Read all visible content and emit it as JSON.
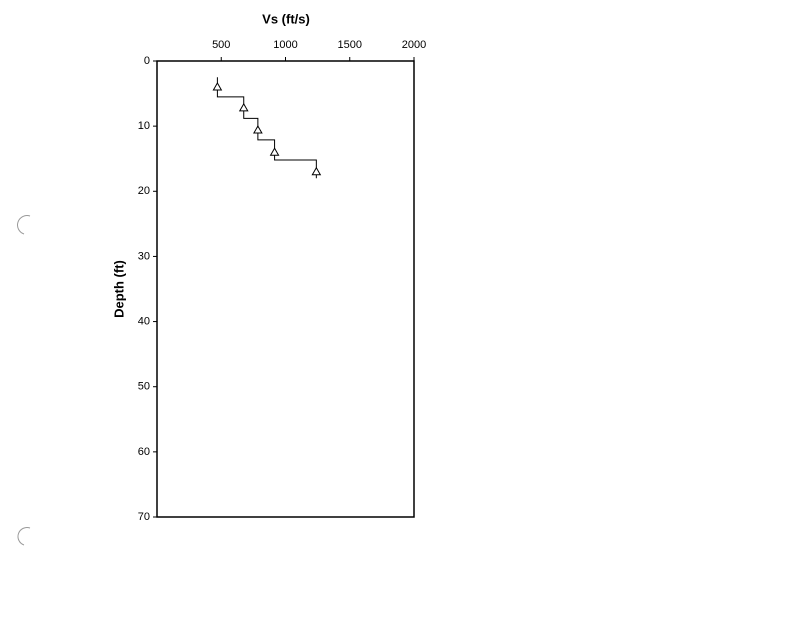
{
  "chart_data": {
    "type": "step-profile",
    "x_label": "Vs (ft/s)",
    "y_label": "Depth (ft)",
    "xlim": [
      0,
      2000
    ],
    "xticks": [
      500,
      1000,
      1500,
      2000
    ],
    "ylim": [
      0,
      70
    ],
    "yticks": [
      0,
      10,
      20,
      30,
      40,
      50,
      60,
      70
    ],
    "y_inverted": true,
    "color": "#000000",
    "profile": {
      "x": [
        470,
        470,
        675,
        675,
        785,
        785,
        915,
        915,
        1240,
        1240
      ],
      "y": [
        2.5,
        5.5,
        5.5,
        8.8,
        8.8,
        12.1,
        12.1,
        15.2,
        15.2,
        18
      ]
    },
    "measurements": {
      "x": [
        470,
        675,
        785,
        915,
        1240
      ],
      "y": [
        4,
        7.2,
        10.6,
        14,
        17
      ]
    }
  }
}
